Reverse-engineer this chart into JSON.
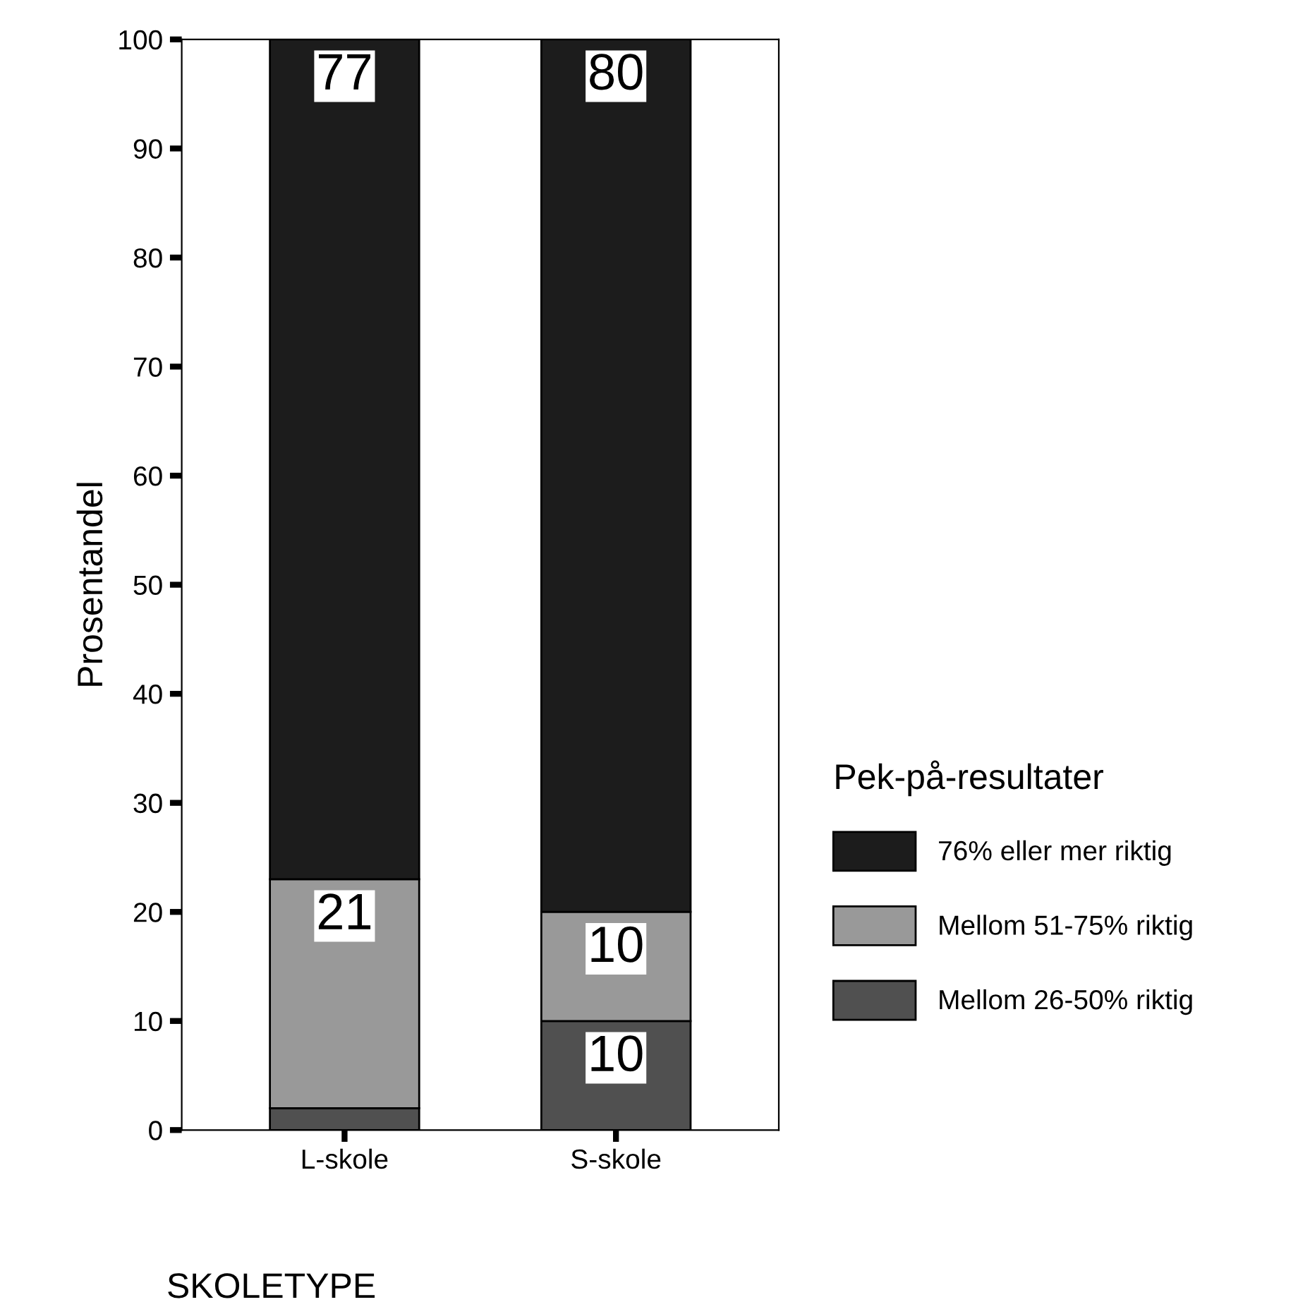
{
  "chart_data": {
    "type": "bar",
    "stacked": true,
    "categories": [
      "L-skole",
      "S-skole"
    ],
    "xlabel": "SKOLETYPE",
    "ylabel": "Prosentandel",
    "legend_title": "Pek-på-resultater",
    "legend": "right",
    "ylim": [
      0,
      100
    ],
    "yticks": [
      0,
      10,
      20,
      30,
      40,
      50,
      60,
      70,
      80,
      90,
      100
    ],
    "grid": false,
    "series": [
      {
        "name": "Mellom 26-50% riktig",
        "color": "#505050",
        "values": [
          2,
          10
        ],
        "value_labels": [
          null,
          "10"
        ]
      },
      {
        "name": "Mellom 51-75% riktig",
        "color": "#999999",
        "values": [
          21,
          10
        ],
        "value_labels": [
          "21",
          "10"
        ]
      },
      {
        "name": "76% eller mer riktig",
        "color": "#1c1c1c",
        "values": [
          77,
          80
        ],
        "value_labels": [
          "77",
          "80"
        ]
      }
    ]
  }
}
